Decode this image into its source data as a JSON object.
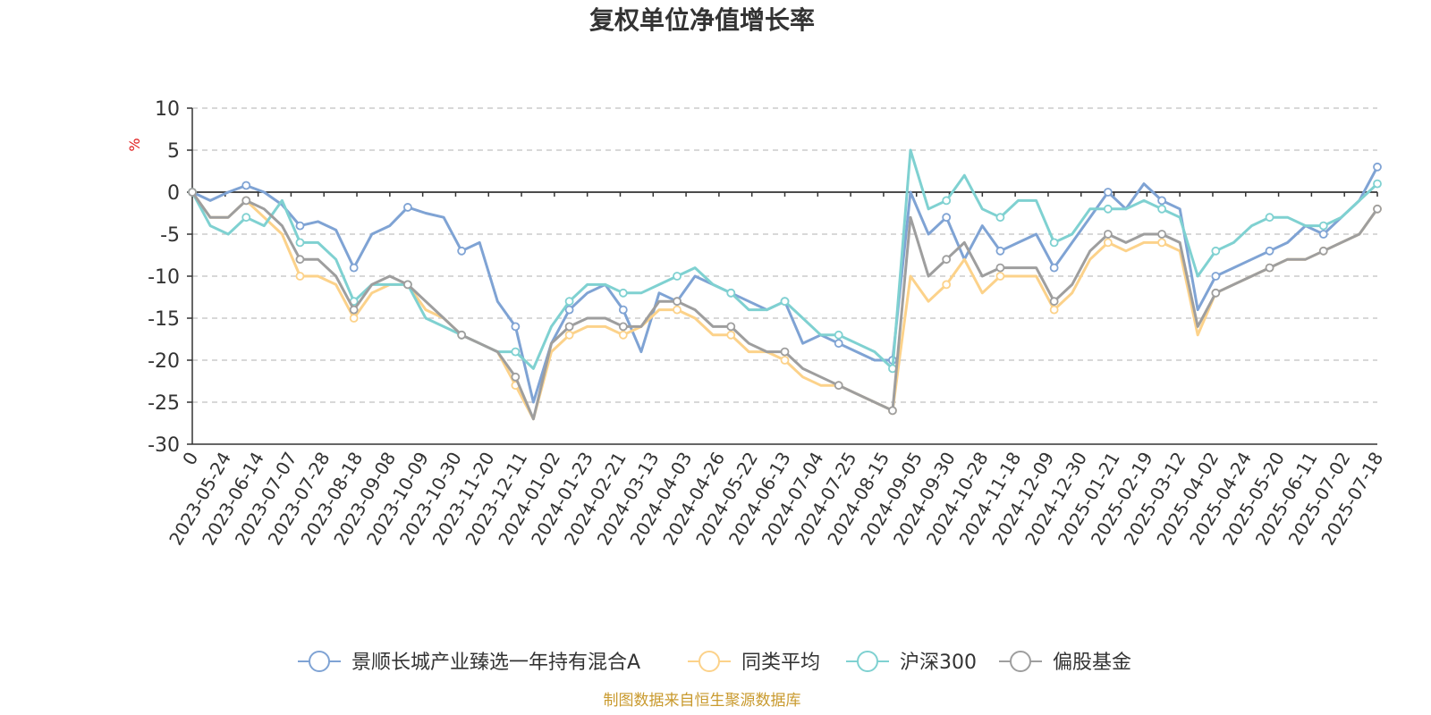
{
  "chart_data": {
    "type": "line",
    "title": "复权单位净值增长率",
    "ylabel": "%",
    "ylim": [
      -30,
      10
    ],
    "yticks": [
      10,
      5,
      0,
      -5,
      -10,
      -15,
      -20,
      -25,
      -30
    ],
    "grid": true,
    "legend_position": "bottom",
    "x_tick_labels": [
      "0",
      "2023-05-24",
      "2023-06-14",
      "2023-07-07",
      "2023-07-28",
      "2023-08-18",
      "2023-09-08",
      "2023-10-09",
      "2023-10-30",
      "2023-11-20",
      "2023-12-11",
      "2024-01-02",
      "2024-01-23",
      "2024-02-21",
      "2024-03-13",
      "2024-04-03",
      "2024-04-26",
      "2024-05-22",
      "2024-06-13",
      "2024-07-04",
      "2024-07-25",
      "2024-08-15",
      "2024-09-05",
      "2024-09-30",
      "2024-10-28",
      "2024-11-18",
      "2024-12-09",
      "2024-12-30",
      "2025-01-21",
      "2025-02-19",
      "2025-03-12",
      "2025-04-02",
      "2025-04-24",
      "2025-05-20",
      "2025-06-11",
      "2025-07-02",
      "2025-07-18"
    ],
    "series": [
      {
        "name": "景顺长城产业臻选一年持有混合A",
        "color": "#7fa3d4",
        "values": [
          0,
          -1,
          0,
          0.8,
          0,
          -1.5,
          -4,
          -3.5,
          -4.5,
          -9,
          -5,
          -4,
          -1.8,
          -2.5,
          -3,
          -7,
          -6,
          -13,
          -16,
          -25,
          -18,
          -14,
          -12,
          -11,
          -14,
          -19,
          -12,
          -13,
          -10,
          -11,
          -12,
          -13,
          -14,
          -13,
          -18,
          -17,
          -18,
          -19,
          -20,
          -20,
          0,
          -5,
          -3,
          -8,
          -4,
          -7,
          -6,
          -5,
          -9,
          -6,
          -3,
          0,
          -2,
          1,
          -1,
          -2,
          -14,
          -10,
          -9,
          -8,
          -7,
          -6,
          -4,
          -5,
          -3,
          -1,
          3
        ]
      },
      {
        "name": "同类平均",
        "color": "#fcd28a",
        "values": [
          0,
          -3,
          -3,
          -1,
          -3,
          -5,
          -10,
          -10,
          -11,
          -15,
          -12,
          -11,
          -11,
          -14,
          -15,
          -17,
          -18,
          -19,
          -23,
          -27,
          -19,
          -17,
          -16,
          -16,
          -17,
          -16,
          -14,
          -14,
          -15,
          -17,
          -17,
          -19,
          -19,
          -20,
          -22,
          -23,
          -23,
          -24,
          -25,
          -26,
          -10,
          -13,
          -11,
          -8,
          -12,
          -10,
          -10,
          -10,
          -14,
          -12,
          -8,
          -6,
          -7,
          -6,
          -6,
          -7,
          -17,
          -12,
          -11,
          -10,
          -9,
          -8,
          -8,
          -7,
          -6,
          -5,
          -2
        ]
      },
      {
        "name": "沪深300",
        "color": "#7fd1d1",
        "values": [
          0,
          -4,
          -5,
          -3,
          -4,
          -1,
          -6,
          -6,
          -8,
          -13,
          -11,
          -11,
          -11,
          -15,
          -16,
          -17,
          -18,
          -19,
          -19,
          -21,
          -16,
          -13,
          -11,
          -11,
          -12,
          -12,
          -11,
          -10,
          -9,
          -11,
          -12,
          -14,
          -14,
          -13,
          -15,
          -17,
          -17,
          -18,
          -19,
          -21,
          5,
          -2,
          -1,
          2,
          -2,
          -3,
          -1,
          -1,
          -6,
          -5,
          -2,
          -2,
          -2,
          -1,
          -2,
          -3,
          -10,
          -7,
          -6,
          -4,
          -3,
          -3,
          -4,
          -4,
          -3,
          -1,
          1
        ]
      },
      {
        "name": "偏股基金",
        "color": "#9e9e9e",
        "values": [
          0,
          -3,
          -3,
          -1,
          -2,
          -4,
          -8,
          -8,
          -10,
          -14,
          -11,
          -10,
          -11,
          -13,
          -15,
          -17,
          -18,
          -19,
          -22,
          -27,
          -18,
          -16,
          -15,
          -15,
          -16,
          -16,
          -13,
          -13,
          -14,
          -16,
          -16,
          -18,
          -19,
          -19,
          -21,
          -22,
          -23,
          -24,
          -25,
          -26,
          -3,
          -10,
          -8,
          -6,
          -10,
          -9,
          -9,
          -9,
          -13,
          -11,
          -7,
          -5,
          -6,
          -5,
          -5,
          -6,
          -16,
          -12,
          -11,
          -10,
          -9,
          -8,
          -8,
          -7,
          -6,
          -5,
          -2
        ]
      }
    ]
  },
  "legend": {
    "items": [
      "景顺长城产业臻选一年持有混合A",
      "同类平均",
      "沪深300",
      "偏股基金"
    ]
  },
  "source_note": "制图数据来自恒生聚源数据库"
}
